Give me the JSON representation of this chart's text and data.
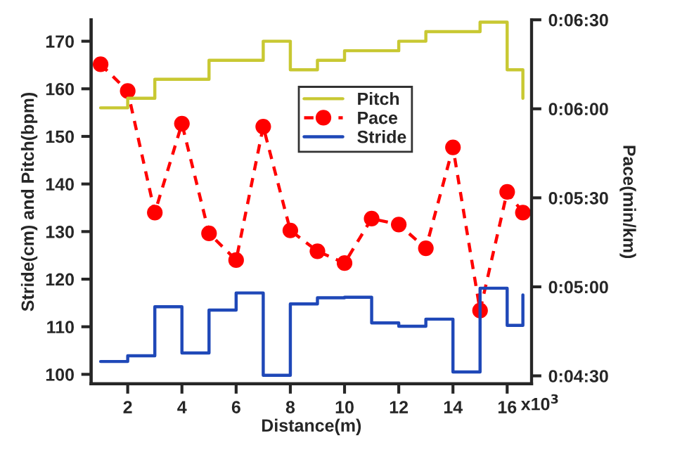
{
  "chart_data": {
    "type": "line",
    "xlabel": "Distance(m)",
    "ylabel": "Stride(cm) and Pitch(bpm)",
    "y2label": "Pace(min/km)",
    "xlim": [
      0.65,
      16.9
    ],
    "xticks": [
      2,
      4,
      6,
      8,
      10,
      12,
      14,
      16
    ],
    "annotations": [
      "x10$^{3}$"
    ],
    "ylim": [
      98,
      174.5
    ],
    "yticks": [
      100,
      110,
      120,
      130,
      140,
      150,
      160,
      170
    ],
    "y2lim": [
      267.3,
      390
    ],
    "y2ticks": [
      {
        "value": 270,
        "label": "0:04:30"
      },
      {
        "value": 300,
        "label": "0:05:00"
      },
      {
        "value": 330,
        "label": "0:05:30"
      },
      {
        "value": 360,
        "label": "0:06:00"
      },
      {
        "value": 390,
        "label": "0:06:30"
      }
    ],
    "grid": false,
    "legend": "top",
    "series": [
      {
        "name": "Pitch",
        "type": "step",
        "color": "#c8c832",
        "line_style": "solid",
        "marker": "none",
        "x": [
          1,
          2,
          3,
          4,
          5,
          6,
          7,
          8,
          9,
          10,
          11,
          12,
          13,
          14,
          15,
          16,
          16.58
        ],
        "values": [
          156,
          158,
          162,
          162,
          166,
          166,
          170,
          164,
          166,
          168,
          168,
          170,
          172,
          172,
          174,
          164,
          158
        ]
      },
      {
        "name": "Pace",
        "axis": "y2",
        "color": "#ff0000",
        "line_style": "dashed",
        "marker": "circle",
        "x": [
          1,
          2,
          3,
          4,
          5,
          6,
          7,
          8,
          9,
          10,
          11,
          12,
          13,
          14,
          15,
          16,
          16.58
        ],
        "values": [
          375,
          366,
          325,
          355,
          318,
          309,
          354,
          319,
          312,
          308,
          323,
          321,
          313,
          347,
          292,
          332,
          325
        ]
      },
      {
        "name": "Stride",
        "type": "step",
        "color": "#1f48b8",
        "line_style": "solid",
        "marker": "none",
        "x": [
          1,
          2,
          3,
          4,
          5,
          6,
          7,
          8,
          9,
          10,
          11,
          12,
          13,
          14,
          15,
          16,
          16.58
        ],
        "values": [
          102.7,
          103.9,
          114.2,
          104.5,
          113.5,
          117.1,
          99.8,
          114.8,
          116.1,
          116.2,
          110.8,
          110.1,
          111.6,
          100.5,
          118.1,
          110.3,
          116.7
        ]
      }
    ]
  }
}
